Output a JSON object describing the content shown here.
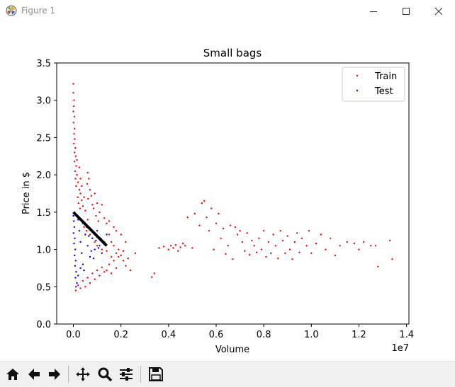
{
  "window": {
    "title": "Figure 1",
    "icons": [
      "matplotlib-logo-icon",
      "minimize-icon",
      "maximize-icon",
      "close-icon"
    ]
  },
  "toolbar": {
    "buttons": [
      "home-icon",
      "back-arrow-icon",
      "forward-arrow-icon",
      "pan-icon",
      "zoom-icon",
      "configure-subplots-icon",
      "save-icon"
    ]
  },
  "colors": {
    "train": "#ff0000",
    "test": "#0000ff",
    "fit_line": "#000000"
  },
  "chart_data": {
    "type": "scatter",
    "title": "Small bags",
    "xlabel": "Volume",
    "ylabel": "Price in $",
    "x_offset_label": "1e7",
    "xlim": [
      -0.07,
      1.41
    ],
    "ylim": [
      0.0,
      3.5
    ],
    "x_ticks": [
      "0.0",
      "0.2",
      "0.4",
      "0.6",
      "0.8",
      "1.0",
      "1.2",
      "1.4"
    ],
    "y_ticks": [
      "0.0",
      "0.5",
      "1.0",
      "1.5",
      "2.0",
      "2.5",
      "3.0",
      "3.5"
    ],
    "legend_position": "top-right",
    "grid": false,
    "series": [
      {
        "name": "Train",
        "color": "#ff0000",
        "points": [
          [
            0.0,
            3.22
          ],
          [
            0.0,
            3.1
          ],
          [
            0.003,
            3.0
          ],
          [
            0.002,
            2.92
          ],
          [
            0.0,
            2.85
          ],
          [
            0.004,
            2.78
          ],
          [
            0.001,
            2.7
          ],
          [
            0.005,
            2.62
          ],
          [
            0.003,
            2.55
          ],
          [
            0.006,
            2.48
          ],
          [
            0.002,
            2.42
          ],
          [
            0.008,
            2.36
          ],
          [
            0.005,
            2.3
          ],
          [
            0.01,
            2.25
          ],
          [
            0.004,
            2.18
          ],
          [
            0.012,
            2.12
          ],
          [
            0.007,
            2.05
          ],
          [
            0.015,
            2.0
          ],
          [
            0.009,
            1.95
          ],
          [
            0.02,
            1.9
          ],
          [
            0.012,
            1.85
          ],
          [
            0.025,
            1.8
          ],
          [
            0.03,
            1.75
          ],
          [
            0.018,
            1.7
          ],
          [
            0.035,
            1.66
          ],
          [
            0.022,
            1.62
          ],
          [
            0.04,
            1.58
          ],
          [
            0.028,
            1.55
          ],
          [
            0.05,
            1.52
          ],
          [
            0.06,
            2.03
          ],
          [
            0.065,
            1.95
          ],
          [
            0.058,
            1.88
          ],
          [
            0.07,
            1.8
          ],
          [
            0.075,
            1.72
          ],
          [
            0.062,
            1.68
          ],
          [
            0.08,
            1.6
          ],
          [
            0.09,
            1.75
          ],
          [
            0.1,
            1.62
          ],
          [
            0.085,
            1.55
          ],
          [
            0.11,
            1.5
          ],
          [
            0.12,
            1.6
          ],
          [
            0.095,
            1.45
          ],
          [
            0.13,
            1.42
          ],
          [
            0.105,
            1.38
          ],
          [
            0.14,
            1.35
          ],
          [
            0.06,
            1.4
          ],
          [
            0.045,
            1.3
          ],
          [
            0.055,
            1.25
          ],
          [
            0.07,
            1.2
          ],
          [
            0.08,
            1.15
          ],
          [
            0.09,
            1.1
          ],
          [
            0.1,
            1.05
          ],
          [
            0.12,
            1.0
          ],
          [
            0.14,
            0.98
          ],
          [
            0.15,
            1.2
          ],
          [
            0.16,
            1.1
          ],
          [
            0.17,
            1.05
          ],
          [
            0.18,
            0.95
          ],
          [
            0.16,
            0.9
          ],
          [
            0.19,
            1.0
          ],
          [
            0.2,
            0.92
          ],
          [
            0.21,
            0.85
          ],
          [
            0.22,
            0.78
          ],
          [
            0.18,
            0.75
          ],
          [
            0.15,
            0.8
          ],
          [
            0.13,
            0.7
          ],
          [
            0.11,
            0.65
          ],
          [
            0.09,
            0.6
          ],
          [
            0.07,
            0.55
          ],
          [
            0.05,
            0.5
          ],
          [
            0.03,
            0.48
          ],
          [
            0.01,
            0.45
          ],
          [
            0.02,
            0.52
          ],
          [
            0.04,
            0.58
          ],
          [
            0.06,
            0.62
          ],
          [
            0.08,
            0.68
          ],
          [
            0.1,
            0.72
          ],
          [
            0.12,
            0.76
          ],
          [
            0.14,
            0.72
          ],
          [
            0.16,
            0.68
          ],
          [
            0.17,
            0.85
          ],
          [
            0.19,
            0.9
          ],
          [
            0.21,
            0.98
          ],
          [
            0.23,
            0.88
          ],
          [
            0.24,
            0.72
          ],
          [
            0.26,
            0.95
          ],
          [
            0.18,
            1.25
          ],
          [
            0.2,
            1.2
          ],
          [
            0.22,
            1.1
          ],
          [
            0.17,
            1.3
          ],
          [
            0.15,
            1.38
          ],
          [
            0.03,
            1.95
          ],
          [
            0.015,
            2.2
          ],
          [
            0.025,
            2.1
          ],
          [
            0.035,
            1.85
          ],
          [
            0.045,
            1.7
          ],
          [
            0.33,
            0.63
          ],
          [
            0.34,
            0.68
          ],
          [
            0.36,
            1.02
          ],
          [
            0.38,
            1.04
          ],
          [
            0.4,
            1.0
          ],
          [
            0.41,
            1.05
          ],
          [
            0.42,
            1.02
          ],
          [
            0.43,
            1.06
          ],
          [
            0.44,
            0.98
          ],
          [
            0.45,
            1.03
          ],
          [
            0.46,
            1.08
          ],
          [
            0.47,
            1.05
          ],
          [
            0.48,
            1.43
          ],
          [
            0.5,
            1.02
          ],
          [
            0.51,
            1.48
          ],
          [
            0.53,
            1.32
          ],
          [
            0.54,
            1.62
          ],
          [
            0.55,
            1.65
          ],
          [
            0.56,
            1.43
          ],
          [
            0.57,
            1.25
          ],
          [
            0.58,
            1.55
          ],
          [
            0.59,
            1.0
          ],
          [
            0.6,
            1.35
          ],
          [
            0.61,
            1.48
          ],
          [
            0.62,
            1.15
          ],
          [
            0.63,
            1.28
          ],
          [
            0.64,
            0.94
          ],
          [
            0.65,
            1.05
          ],
          [
            0.66,
            1.32
          ],
          [
            0.67,
            0.87
          ],
          [
            0.68,
            1.3
          ],
          [
            0.69,
            1.2
          ],
          [
            0.7,
            1.25
          ],
          [
            0.71,
            1.1
          ],
          [
            0.72,
            0.98
          ],
          [
            0.73,
            1.22
          ],
          [
            0.74,
            0.93
          ],
          [
            0.75,
            1.12
          ],
          [
            0.76,
            1.05
          ],
          [
            0.77,
            0.96
          ],
          [
            0.78,
            1.15
          ],
          [
            0.79,
            1.0
          ],
          [
            0.8,
            1.25
          ],
          [
            0.81,
            0.9
          ],
          [
            0.82,
            1.1
          ],
          [
            0.83,
            0.95
          ],
          [
            0.84,
            1.2
          ],
          [
            0.85,
            1.05
          ],
          [
            0.86,
            0.88
          ],
          [
            0.87,
            1.25
          ],
          [
            0.88,
            1.12
          ],
          [
            0.89,
            0.95
          ],
          [
            0.9,
            1.18
          ],
          [
            0.91,
            1.0
          ],
          [
            0.92,
            0.87
          ],
          [
            0.93,
            1.1
          ],
          [
            0.94,
            1.22
          ],
          [
            0.95,
            0.96
          ],
          [
            0.96,
            1.15
          ],
          [
            0.98,
            1.05
          ],
          [
            0.99,
            1.25
          ],
          [
            1.0,
            0.95
          ],
          [
            1.02,
            1.08
          ],
          [
            1.04,
            1.2
          ],
          [
            1.06,
            1.0
          ],
          [
            1.08,
            1.15
          ],
          [
            1.1,
            0.92
          ],
          [
            1.12,
            1.05
          ],
          [
            1.15,
            1.1
          ],
          [
            1.18,
            1.08
          ],
          [
            1.2,
            1.0
          ],
          [
            1.22,
            1.1
          ],
          [
            1.25,
            1.05
          ],
          [
            1.27,
            1.05
          ],
          [
            1.28,
            0.77
          ],
          [
            1.33,
            1.12
          ],
          [
            1.34,
            0.87
          ]
        ]
      },
      {
        "name": "Test",
        "color": "#0000ff",
        "points": [
          [
            0.0,
            1.45
          ],
          [
            0.002,
            1.38
          ],
          [
            0.004,
            1.3
          ],
          [
            0.001,
            1.22
          ],
          [
            0.006,
            1.15
          ],
          [
            0.003,
            1.08
          ],
          [
            0.008,
            1.0
          ],
          [
            0.005,
            0.92
          ],
          [
            0.01,
            0.85
          ],
          [
            0.007,
            0.78
          ],
          [
            0.012,
            0.7
          ],
          [
            0.009,
            0.62
          ],
          [
            0.015,
            0.55
          ],
          [
            0.011,
            0.5
          ],
          [
            0.02,
            1.4
          ],
          [
            0.025,
            1.25
          ],
          [
            0.03,
            1.1
          ],
          [
            0.035,
            0.95
          ],
          [
            0.04,
            0.8
          ],
          [
            0.045,
            0.72
          ],
          [
            0.05,
            1.2
          ],
          [
            0.06,
            1.05
          ],
          [
            0.07,
            0.9
          ],
          [
            0.08,
            1.15
          ],
          [
            0.09,
            1.0
          ],
          [
            0.1,
            1.25
          ],
          [
            0.11,
            1.05
          ],
          [
            0.12,
            0.95
          ],
          [
            0.13,
            1.1
          ],
          [
            0.14,
            1.2
          ],
          [
            0.02,
            0.65
          ],
          [
            0.03,
            0.75
          ],
          [
            0.04,
            1.35
          ],
          [
            0.055,
            1.3
          ],
          [
            0.065,
            1.18
          ],
          [
            0.075,
            0.98
          ],
          [
            0.085,
            0.88
          ],
          [
            0.095,
            1.12
          ],
          [
            0.105,
            1.02
          ],
          [
            0.115,
            1.15
          ]
        ]
      }
    ],
    "fit_line": {
      "x": [
        0.0,
        0.14
      ],
      "y": [
        1.5,
        1.05
      ]
    }
  }
}
